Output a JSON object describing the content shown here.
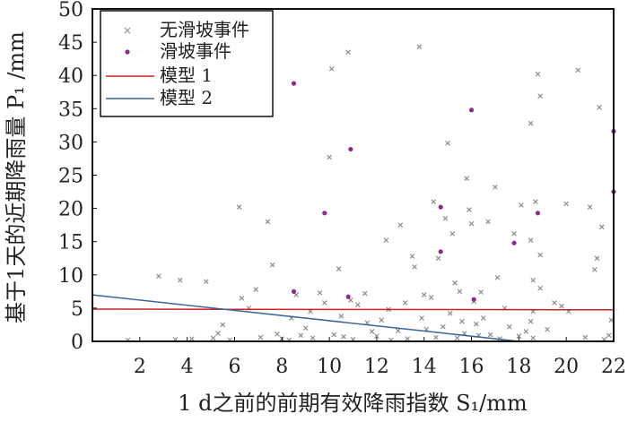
{
  "chart_data": {
    "type": "scatter",
    "xlabel": "1 d之前的前期有效降雨指数 S₁/mm",
    "ylabel": "基于1天的近期降雨量 P₁ /mm",
    "xlim": [
      0,
      22
    ],
    "ylim": [
      0,
      50
    ],
    "xticks": [
      "2",
      "4",
      "6",
      "8",
      "10",
      "12",
      "14",
      "16",
      "18",
      "20",
      "22"
    ],
    "yticks": [
      "0",
      "5",
      "10",
      "15",
      "20",
      "25",
      "30",
      "35",
      "40",
      "45",
      "50"
    ],
    "legend_position": "top-left",
    "series": [
      {
        "name": "无滑坡事件",
        "kind": "scatter",
        "marker": "x",
        "color": "#8c8c8c",
        "points": [
          [
            1.5,
            0.2
          ],
          [
            2.8,
            9.8
          ],
          [
            3.5,
            0.3
          ],
          [
            3.7,
            9.2
          ],
          [
            4.2,
            0.4
          ],
          [
            4.8,
            9.0
          ],
          [
            5.1,
            0.5
          ],
          [
            5.3,
            1.2
          ],
          [
            5.5,
            2.5
          ],
          [
            5.8,
            0.2
          ],
          [
            6.2,
            20.2
          ],
          [
            6.3,
            6.5
          ],
          [
            6.6,
            5.0
          ],
          [
            6.9,
            7.8
          ],
          [
            7.1,
            0.6
          ],
          [
            7.4,
            18.0
          ],
          [
            7.6,
            11.5
          ],
          [
            7.8,
            1.1
          ],
          [
            8.0,
            0.4
          ],
          [
            8.3,
            0.2
          ],
          [
            8.4,
            3.5
          ],
          [
            8.6,
            7.0
          ],
          [
            8.8,
            0.9
          ],
          [
            9.0,
            2.0
          ],
          [
            9.2,
            4.5
          ],
          [
            9.3,
            0.5
          ],
          [
            9.6,
            7.3
          ],
          [
            9.8,
            5.8
          ],
          [
            10.0,
            27.7
          ],
          [
            10.1,
            41.0
          ],
          [
            10.2,
            1.0
          ],
          [
            10.4,
            10.9
          ],
          [
            10.5,
            3.8
          ],
          [
            10.6,
            0.7
          ],
          [
            10.8,
            43.5
          ],
          [
            10.9,
            6.2
          ],
          [
            11.0,
            0.3
          ],
          [
            11.2,
            5.5
          ],
          [
            11.5,
            7.2
          ],
          [
            11.6,
            2.8
          ],
          [
            11.8,
            1.5
          ],
          [
            12.0,
            0.8
          ],
          [
            12.2,
            3.2
          ],
          [
            12.4,
            15.2
          ],
          [
            12.5,
            4.8
          ],
          [
            12.6,
            0.2
          ],
          [
            12.9,
            1.6
          ],
          [
            13.0,
            17.5
          ],
          [
            13.2,
            5.8
          ],
          [
            13.3,
            0.4
          ],
          [
            13.5,
            12.8
          ],
          [
            13.6,
            11.2
          ],
          [
            13.8,
            44.3
          ],
          [
            13.9,
            3.5
          ],
          [
            14.0,
            7.0
          ],
          [
            14.1,
            1.8
          ],
          [
            14.3,
            6.6
          ],
          [
            14.4,
            21.0
          ],
          [
            14.5,
            0.6
          ],
          [
            14.6,
            12.5
          ],
          [
            14.8,
            2.2
          ],
          [
            14.9,
            18.5
          ],
          [
            15.0,
            29.8
          ],
          [
            15.1,
            4.2
          ],
          [
            15.2,
            16.2
          ],
          [
            15.3,
            8.8
          ],
          [
            15.4,
            0.5
          ],
          [
            15.5,
            7.5
          ],
          [
            15.6,
            3.0
          ],
          [
            15.7,
            1.2
          ],
          [
            15.8,
            24.5
          ],
          [
            15.9,
            19.8
          ],
          [
            16.0,
            17.7
          ],
          [
            16.1,
            6.0
          ],
          [
            16.2,
            2.6
          ],
          [
            16.3,
            0.9
          ],
          [
            16.4,
            7.4
          ],
          [
            16.5,
            3.5
          ],
          [
            16.7,
            18.0
          ],
          [
            16.8,
            1.0
          ],
          [
            17.0,
            23.2
          ],
          [
            17.1,
            9.6
          ],
          [
            17.2,
            0.4
          ],
          [
            17.4,
            5.0
          ],
          [
            17.6,
            2.2
          ],
          [
            17.8,
            16.2
          ],
          [
            18.0,
            0.8
          ],
          [
            18.1,
            20.5
          ],
          [
            18.3,
            1.5
          ],
          [
            18.5,
            32.8
          ],
          [
            18.5,
            15.2
          ],
          [
            18.6,
            9.2
          ],
          [
            18.6,
            4.5
          ],
          [
            18.7,
            21.0
          ],
          [
            18.8,
            40.2
          ],
          [
            18.9,
            36.9
          ],
          [
            18.9,
            13.0
          ],
          [
            18.9,
            8.0
          ],
          [
            18.5,
            3.0
          ],
          [
            18.6,
            0.5
          ],
          [
            19.2,
            1.8
          ],
          [
            19.5,
            5.8
          ],
          [
            19.8,
            5.3
          ],
          [
            20.0,
            20.7
          ],
          [
            20.1,
            4.5
          ],
          [
            20.5,
            40.8
          ],
          [
            20.8,
            0.6
          ],
          [
            21.0,
            20.2
          ],
          [
            21.2,
            10.8
          ],
          [
            21.3,
            12.5
          ],
          [
            21.4,
            35.2
          ],
          [
            21.5,
            17.2
          ],
          [
            21.6,
            0.3
          ],
          [
            21.8,
            0.9
          ],
          [
            21.9,
            3.2
          ]
        ]
      },
      {
        "name": "滑坡事件",
        "kind": "scatter",
        "marker": "dot",
        "color": "#8e2a8e",
        "points": [
          [
            8.5,
            38.8
          ],
          [
            8.5,
            7.5
          ],
          [
            9.8,
            19.3
          ],
          [
            10.9,
            28.9
          ],
          [
            10.8,
            6.7
          ],
          [
            14.7,
            20.2
          ],
          [
            14.7,
            13.5
          ],
          [
            16.0,
            34.8
          ],
          [
            16.1,
            6.3
          ],
          [
            17.8,
            14.8
          ],
          [
            18.8,
            19.3
          ],
          [
            22.0,
            31.6
          ],
          [
            22.0,
            22.5
          ]
        ]
      },
      {
        "name": "模型 1",
        "kind": "line",
        "color": "#d02020",
        "x": [
          0,
          22
        ],
        "y": [
          4.85,
          4.75
        ]
      },
      {
        "name": "模型 2",
        "kind": "line",
        "color": "#3c6496",
        "x": [
          0,
          18.0
        ],
        "y": [
          7.0,
          0.0
        ]
      }
    ]
  }
}
